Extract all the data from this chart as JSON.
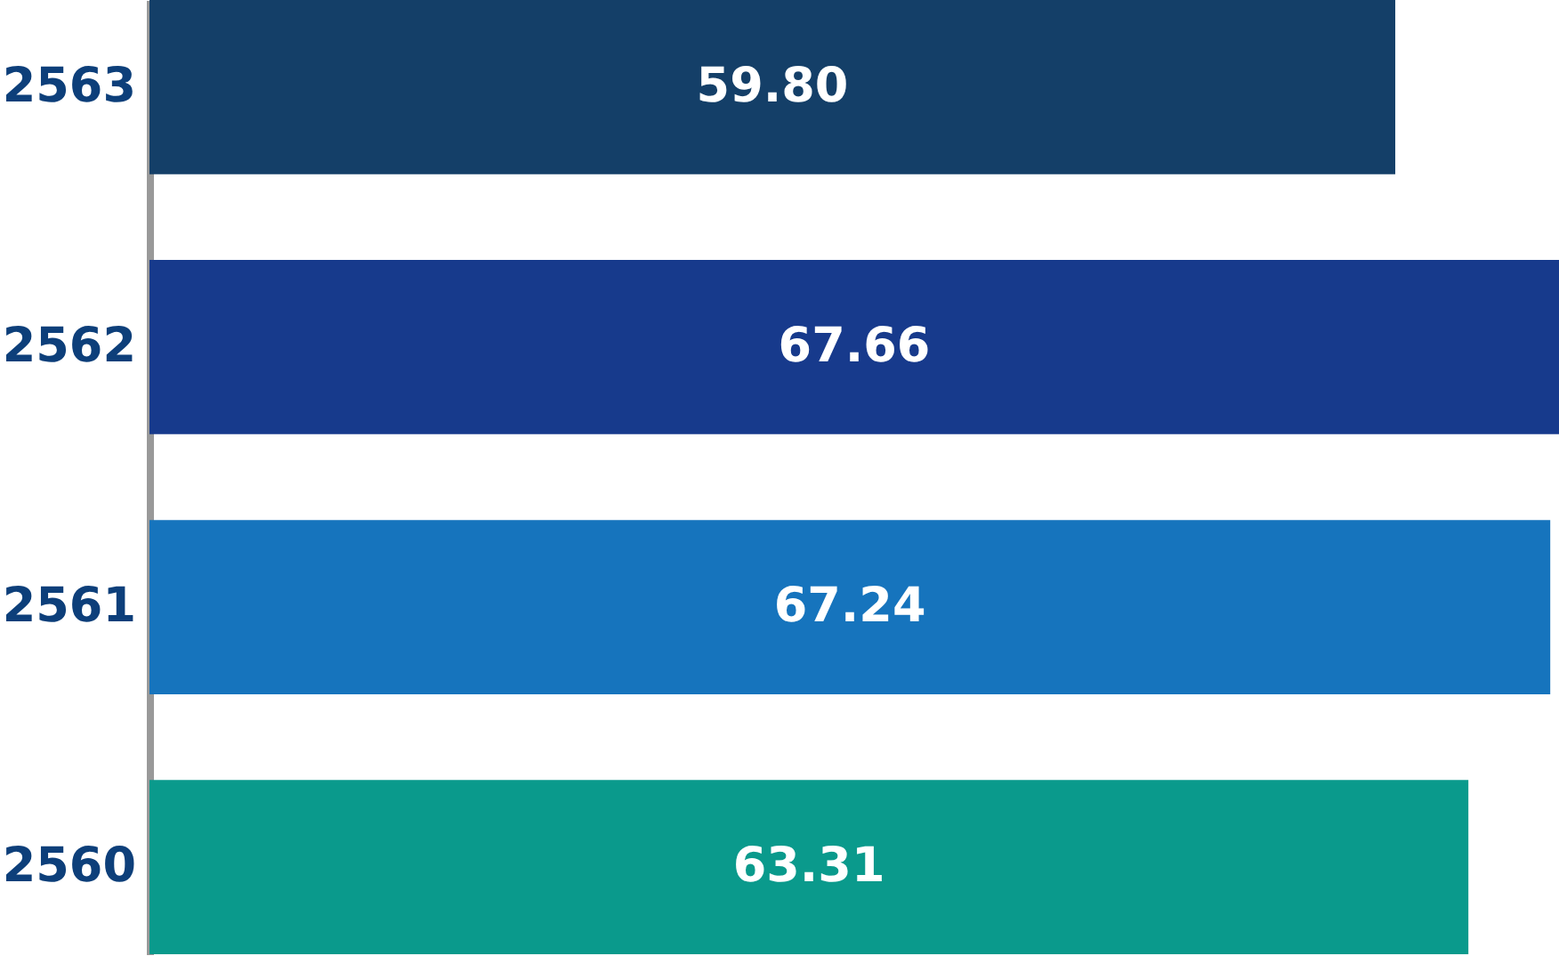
{
  "chart_data": {
    "type": "bar",
    "orientation": "horizontal",
    "categories": [
      "2563",
      "2562",
      "2561",
      "2560"
    ],
    "values": [
      59.8,
      67.66,
      67.24,
      63.31
    ],
    "value_labels": [
      "59.80",
      "67.66",
      "67.24",
      "63.31"
    ],
    "colors": [
      "#143f68",
      "#173a8c",
      "#1674bd",
      "#0a9a8c"
    ],
    "legend": false
  }
}
